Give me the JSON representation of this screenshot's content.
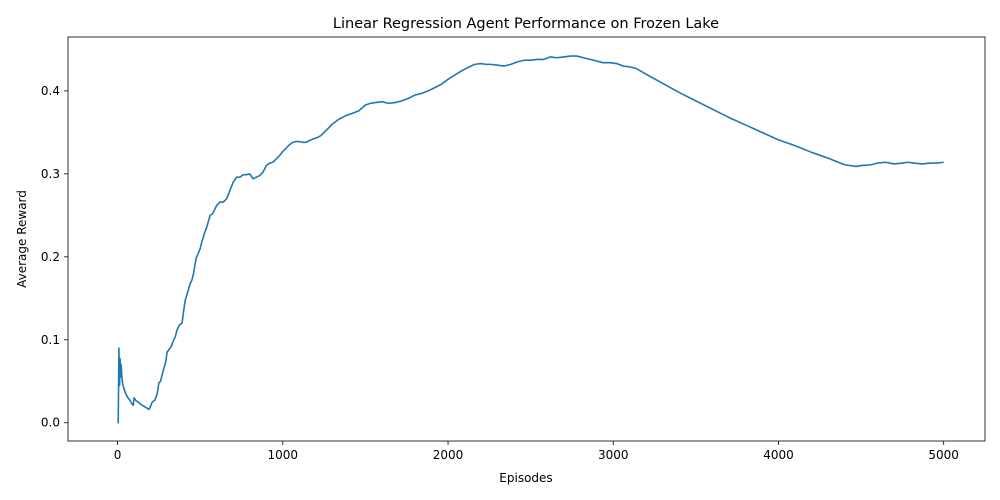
{
  "chart_data": {
    "type": "line",
    "title": "Linear Regression Agent Performance on Frozen Lake",
    "xlabel": "Episodes",
    "ylabel": "Average Reward",
    "xlim": [
      -300,
      5250
    ],
    "ylim": [
      -0.022,
      0.465
    ],
    "xticks": [
      0,
      1000,
      2000,
      3000,
      4000,
      5000
    ],
    "xtick_labels": [
      "0",
      "1000",
      "2000",
      "3000",
      "4000",
      "5000"
    ],
    "yticks": [
      0.0,
      0.1,
      0.2,
      0.3,
      0.4
    ],
    "ytick_labels": [
      "0.0",
      "0.1",
      "0.2",
      "0.3",
      "0.4"
    ],
    "grid": false,
    "legend": "none",
    "series": [
      {
        "color": "#1f77b4",
        "x": [
          0,
          4,
          8,
          10,
          12,
          16,
          18,
          22,
          25,
          30,
          40,
          50,
          60,
          75,
          90,
          95,
          100,
          110,
          130,
          150,
          175,
          190,
          200,
          210,
          225,
          240,
          250,
          260,
          275,
          290,
          300,
          310,
          325,
          340,
          350,
          360,
          375,
          390,
          400,
          410,
          425,
          440,
          450,
          460,
          475,
          490,
          500,
          510,
          525,
          540,
          550,
          560,
          575,
          590,
          600,
          620,
          640,
          660,
          680,
          700,
          720,
          740,
          760,
          780,
          800,
          820,
          840,
          860,
          880,
          900,
          920,
          940,
          960,
          980,
          1000,
          1020,
          1040,
          1060,
          1080,
          1100,
          1120,
          1140,
          1160,
          1180,
          1200,
          1230,
          1260,
          1300,
          1340,
          1380,
          1420,
          1460,
          1500,
          1530,
          1560,
          1600,
          1640,
          1680,
          1720,
          1760,
          1800,
          1840,
          1880,
          1920,
          1960,
          2000,
          2040,
          2080,
          2120,
          2160,
          2200,
          2230,
          2260,
          2300,
          2340,
          2380,
          2420,
          2460,
          2500,
          2540,
          2580,
          2620,
          2660,
          2700,
          2740,
          2780,
          2820,
          2860,
          2900,
          2940,
          2980,
          3020,
          3060,
          3100,
          3140,
          3200,
          3300,
          3400,
          3500,
          3600,
          3700,
          3800,
          3900,
          4000,
          4100,
          4200,
          4300,
          4400,
          4470,
          4500,
          4560,
          4600,
          4650,
          4700,
          4750,
          4780,
          4820,
          4870,
          4920,
          4960,
          5000
        ],
        "y": [
          0.0,
          0.0,
          0.09,
          0.06,
          0.045,
          0.077,
          0.055,
          0.07,
          0.058,
          0.048,
          0.04,
          0.035,
          0.031,
          0.027,
          0.022,
          0.021,
          0.03,
          0.027,
          0.024,
          0.021,
          0.018,
          0.016,
          0.02,
          0.025,
          0.027,
          0.035,
          0.048,
          0.05,
          0.062,
          0.072,
          0.085,
          0.088,
          0.092,
          0.1,
          0.104,
          0.112,
          0.118,
          0.12,
          0.135,
          0.148,
          0.158,
          0.168,
          0.172,
          0.18,
          0.198,
          0.205,
          0.21,
          0.218,
          0.228,
          0.236,
          0.243,
          0.25,
          0.252,
          0.258,
          0.262,
          0.266,
          0.266,
          0.27,
          0.28,
          0.29,
          0.296,
          0.296,
          0.299,
          0.299,
          0.3,
          0.294,
          0.296,
          0.298,
          0.302,
          0.31,
          0.313,
          0.314,
          0.318,
          0.322,
          0.327,
          0.331,
          0.335,
          0.338,
          0.339,
          0.339,
          0.338,
          0.338,
          0.34,
          0.342,
          0.343,
          0.346,
          0.352,
          0.36,
          0.366,
          0.37,
          0.373,
          0.376,
          0.383,
          0.385,
          0.386,
          0.387,
          0.385,
          0.386,
          0.388,
          0.391,
          0.395,
          0.397,
          0.4,
          0.404,
          0.408,
          0.414,
          0.419,
          0.424,
          0.428,
          0.432,
          0.433,
          0.432,
          0.432,
          0.431,
          0.43,
          0.432,
          0.435,
          0.437,
          0.437,
          0.438,
          0.438,
          0.441,
          0.44,
          0.441,
          0.442,
          0.442,
          0.44,
          0.438,
          0.436,
          0.434,
          0.434,
          0.433,
          0.43,
          0.429,
          0.427,
          0.42,
          0.409,
          0.398,
          0.388,
          0.378,
          0.368,
          0.359,
          0.35,
          0.341,
          0.334,
          0.326,
          0.319,
          0.311,
          0.309,
          0.31,
          0.311,
          0.313,
          0.314,
          0.312,
          0.313,
          0.314,
          0.313,
          0.312,
          0.313,
          0.313,
          0.314
        ]
      }
    ]
  }
}
